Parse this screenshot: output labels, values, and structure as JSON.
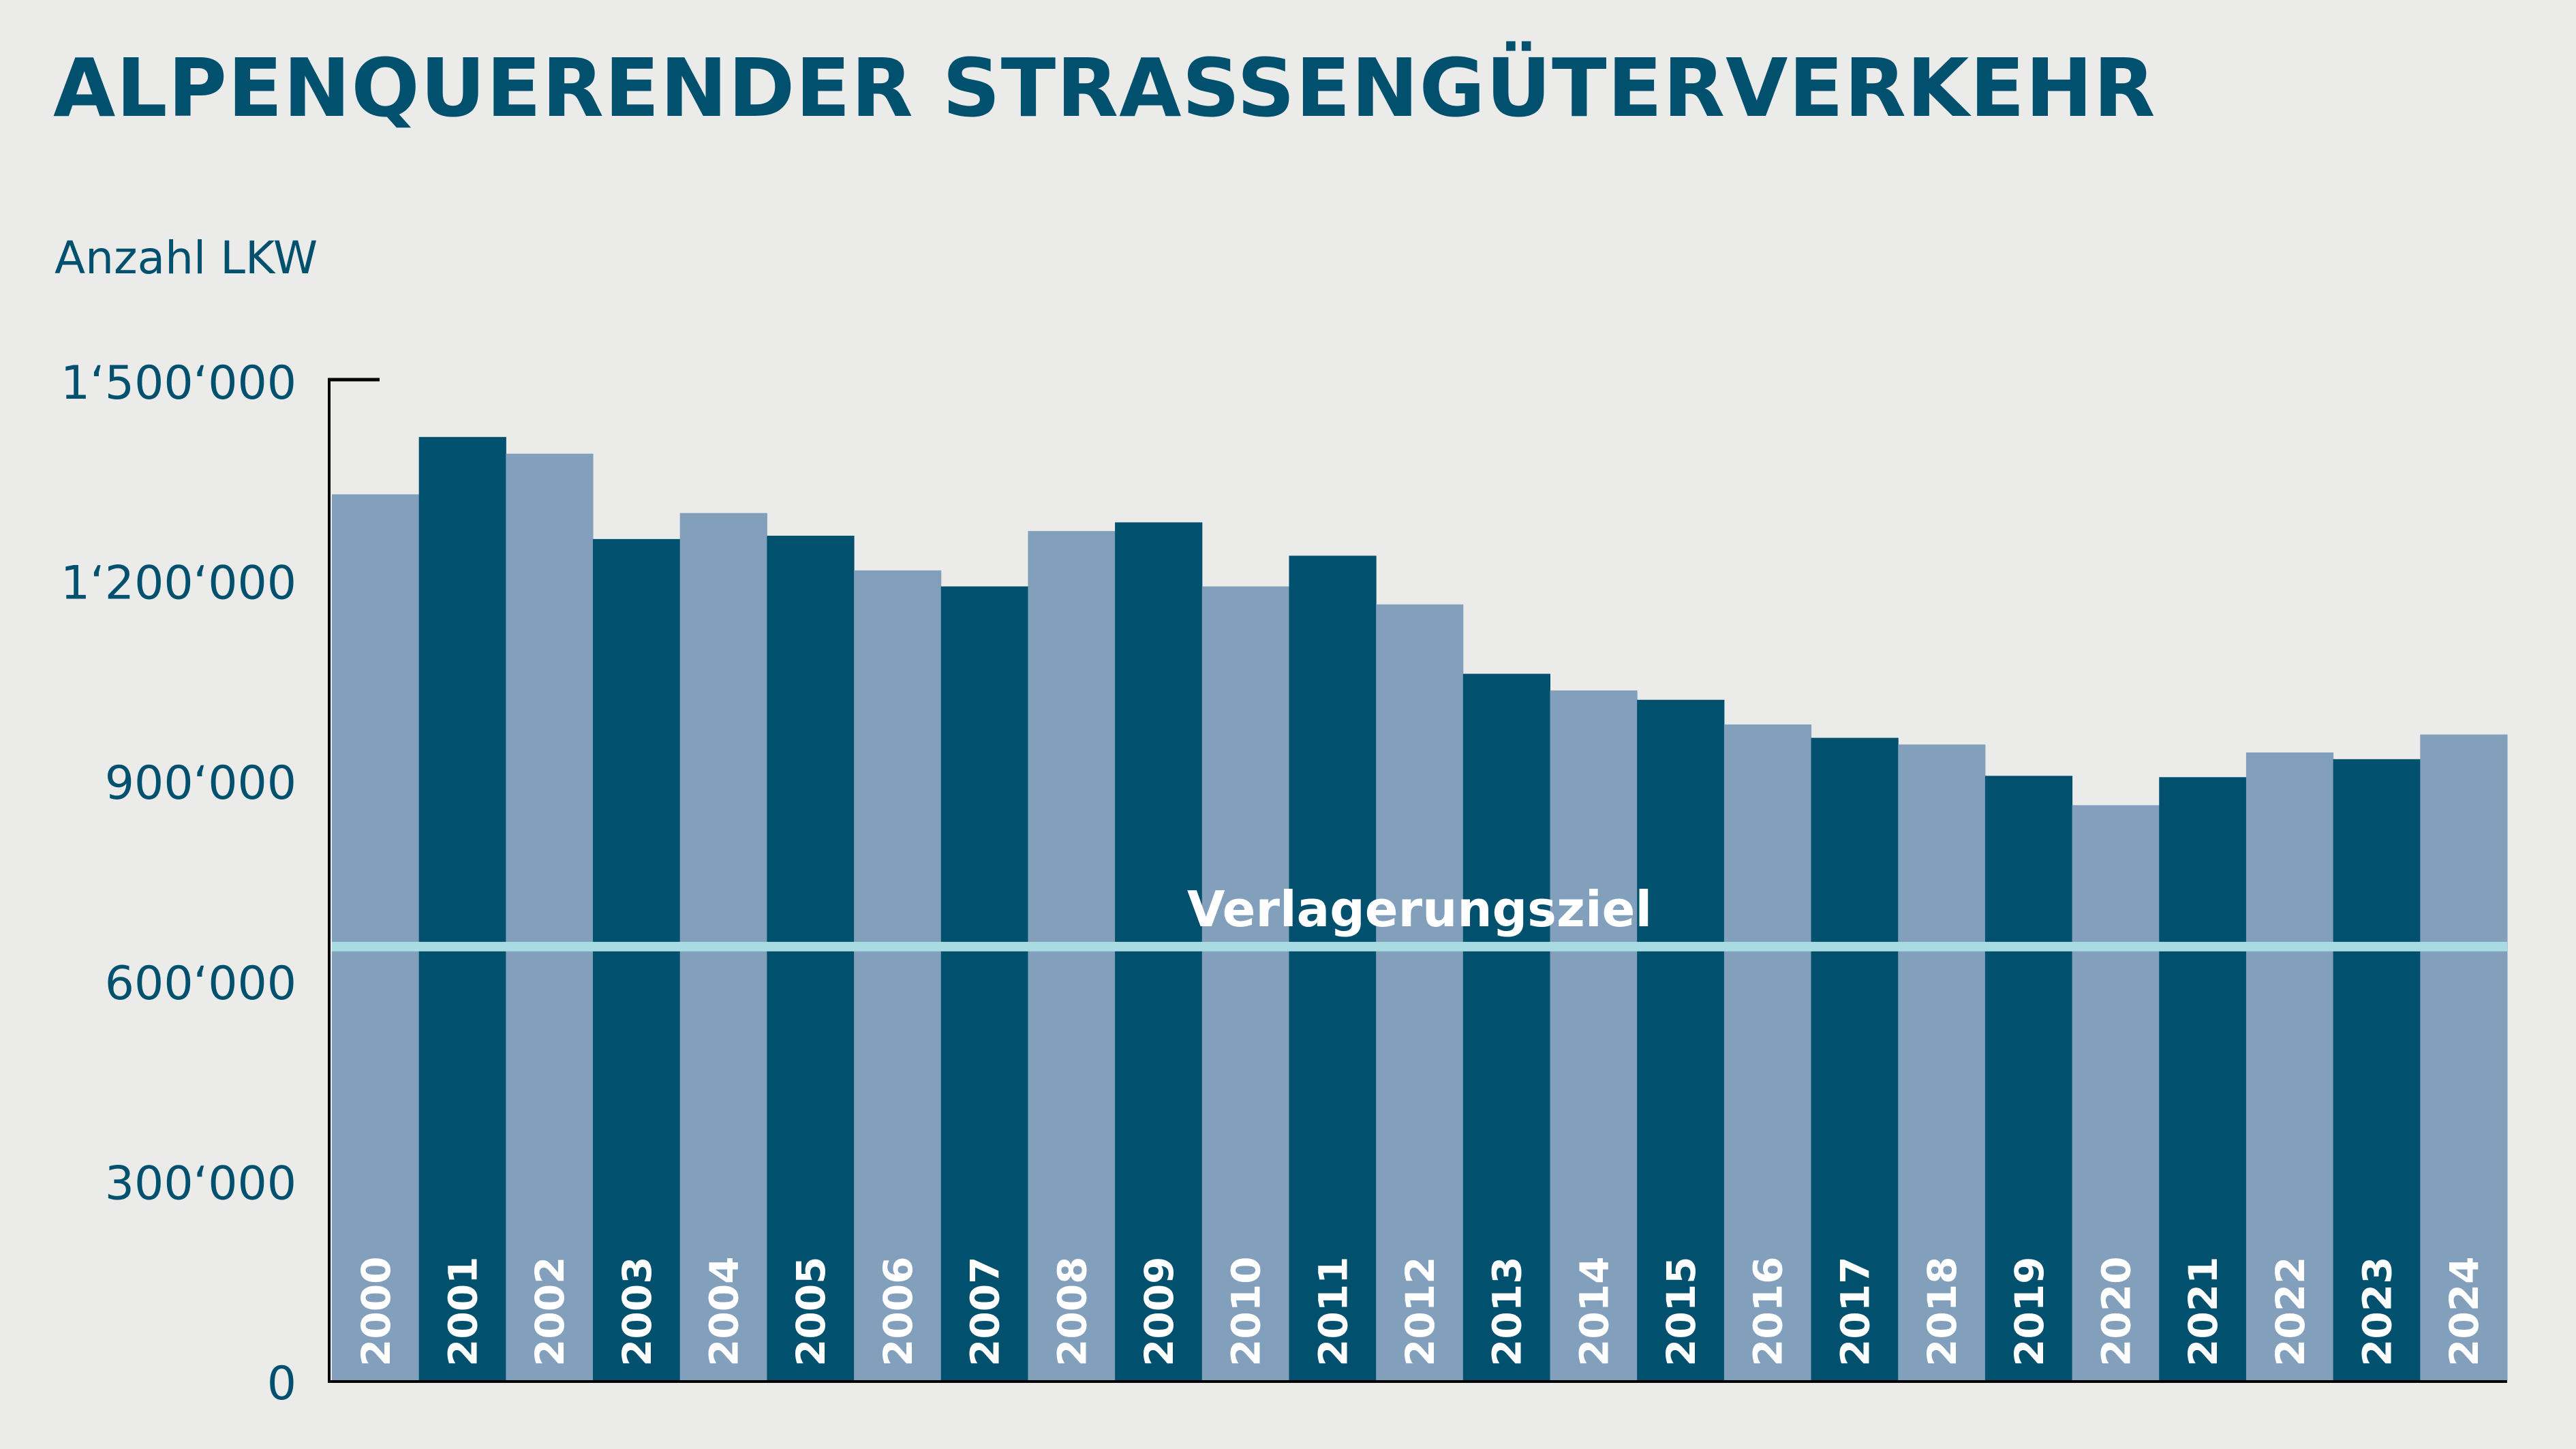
{
  "chart_data": {
    "type": "bar",
    "title": "ALPENQUERENDER STRASSENGÜTERVERKEHR",
    "ylabel": "Anzahl LKW",
    "xlabel": "",
    "ylim": [
      0,
      1500000
    ],
    "yticks": [
      0,
      300000,
      600000,
      900000,
      1200000,
      1500000
    ],
    "ytick_labels": [
      "0",
      "300‘000",
      "600‘000",
      "900‘000",
      "1‘200‘000",
      "1‘500‘000"
    ],
    "grid": false,
    "categories": [
      "2000",
      "2001",
      "2002",
      "2003",
      "2004",
      "2005",
      "2006",
      "2007",
      "2008",
      "2009",
      "2010",
      "2011",
      "2012",
      "2013",
      "2014",
      "2015",
      "2016",
      "2017",
      "2018",
      "2019",
      "2020",
      "2021",
      "2022",
      "2023",
      "2024"
    ],
    "values": [
      1328000,
      1414000,
      1389000,
      1261000,
      1300000,
      1266000,
      1214000,
      1190000,
      1273000,
      1286000,
      1190000,
      1236000,
      1163000,
      1059000,
      1034000,
      1020000,
      983000,
      963000,
      953000,
      906000,
      862000,
      904000,
      941000,
      931000,
      968000
    ],
    "target_line": {
      "label": "Verlagerungsziel",
      "value": 650000,
      "color": "#a8dbe2"
    },
    "colors": {
      "odd": "#829fbb",
      "even": "#00506e",
      "text": "#00506e",
      "background": "#ebebea"
    }
  }
}
